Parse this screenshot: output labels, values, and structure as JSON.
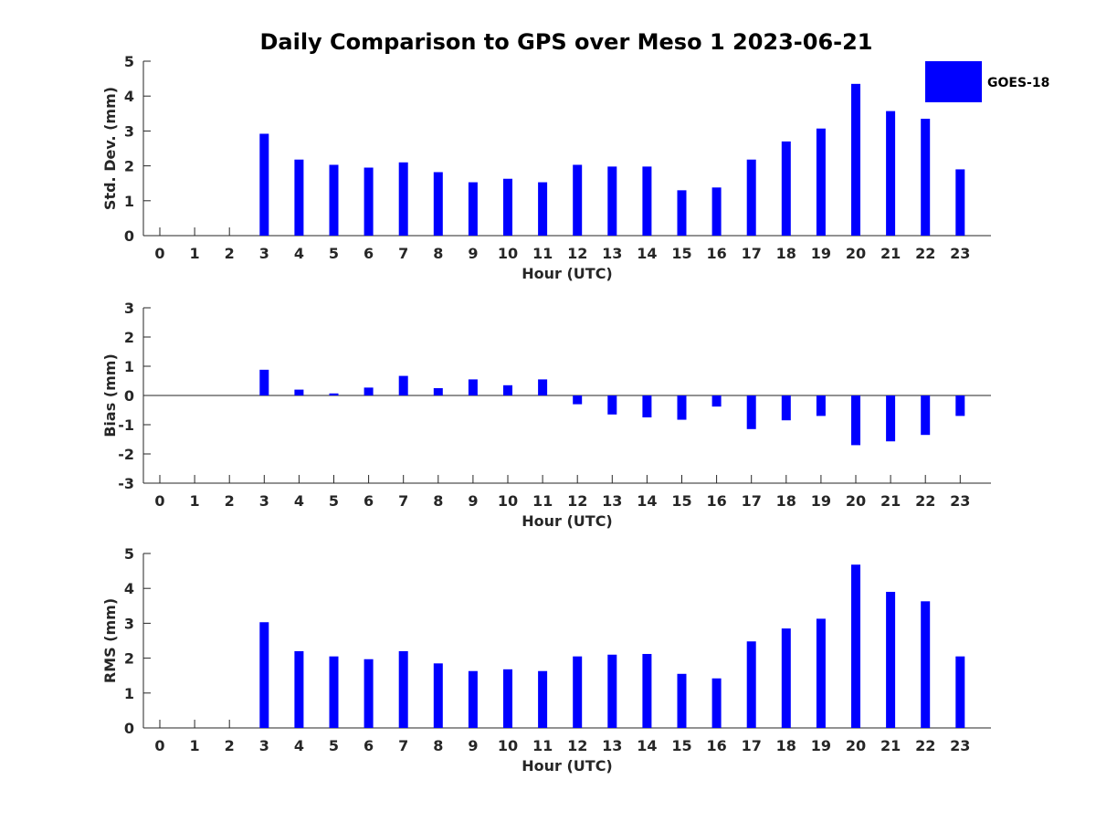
{
  "title": "Daily Comparison to GPS over Meso 1 2023-06-21",
  "legend": {
    "label": "GOES-18",
    "color": "#0000ff",
    "placement": "top-right"
  },
  "chart_data": [
    {
      "type": "bar",
      "ylabel": "Std. Dev. (mm)",
      "xlabel": "Hour (UTC)",
      "ylim": [
        0,
        5
      ],
      "yticks": [
        0,
        1,
        2,
        3,
        4,
        5
      ],
      "categories": [
        0,
        1,
        2,
        3,
        4,
        5,
        6,
        7,
        8,
        9,
        10,
        11,
        12,
        13,
        14,
        15,
        16,
        17,
        18,
        19,
        20,
        21,
        22,
        23
      ],
      "series": [
        {
          "name": "GOES-18",
          "values": [
            null,
            null,
            null,
            2.92,
            2.18,
            2.03,
            1.95,
            2.1,
            1.82,
            1.53,
            1.63,
            1.53,
            2.03,
            1.98,
            1.98,
            1.3,
            1.38,
            2.18,
            2.7,
            3.07,
            4.35,
            3.57,
            3.35,
            1.9
          ]
        }
      ]
    },
    {
      "type": "bar",
      "ylabel": "Bias (mm)",
      "xlabel": "Hour (UTC)",
      "ylim": [
        -3,
        3
      ],
      "yticks": [
        -3,
        -2,
        -1,
        0,
        1,
        2,
        3
      ],
      "zero_line": true,
      "categories": [
        0,
        1,
        2,
        3,
        4,
        5,
        6,
        7,
        8,
        9,
        10,
        11,
        12,
        13,
        14,
        15,
        16,
        17,
        18,
        19,
        20,
        21,
        22,
        23
      ],
      "series": [
        {
          "name": "GOES-18",
          "values": [
            null,
            null,
            null,
            0.88,
            0.2,
            0.07,
            0.27,
            0.67,
            0.25,
            0.55,
            0.35,
            0.55,
            -0.3,
            -0.65,
            -0.75,
            -0.83,
            -0.38,
            -1.15,
            -0.85,
            -0.7,
            -1.7,
            -1.57,
            -1.35,
            -0.7
          ]
        }
      ]
    },
    {
      "type": "bar",
      "ylabel": "RMS (mm)",
      "xlabel": "Hour (UTC)",
      "ylim": [
        0,
        5
      ],
      "yticks": [
        0,
        1,
        2,
        3,
        4,
        5
      ],
      "categories": [
        0,
        1,
        2,
        3,
        4,
        5,
        6,
        7,
        8,
        9,
        10,
        11,
        12,
        13,
        14,
        15,
        16,
        17,
        18,
        19,
        20,
        21,
        22,
        23
      ],
      "series": [
        {
          "name": "GOES-18",
          "values": [
            null,
            null,
            null,
            3.03,
            2.2,
            2.05,
            1.97,
            2.2,
            1.85,
            1.63,
            1.68,
            1.63,
            2.05,
            2.1,
            2.12,
            1.55,
            1.42,
            2.48,
            2.85,
            3.13,
            4.68,
            3.9,
            3.63,
            2.05
          ]
        }
      ]
    }
  ]
}
